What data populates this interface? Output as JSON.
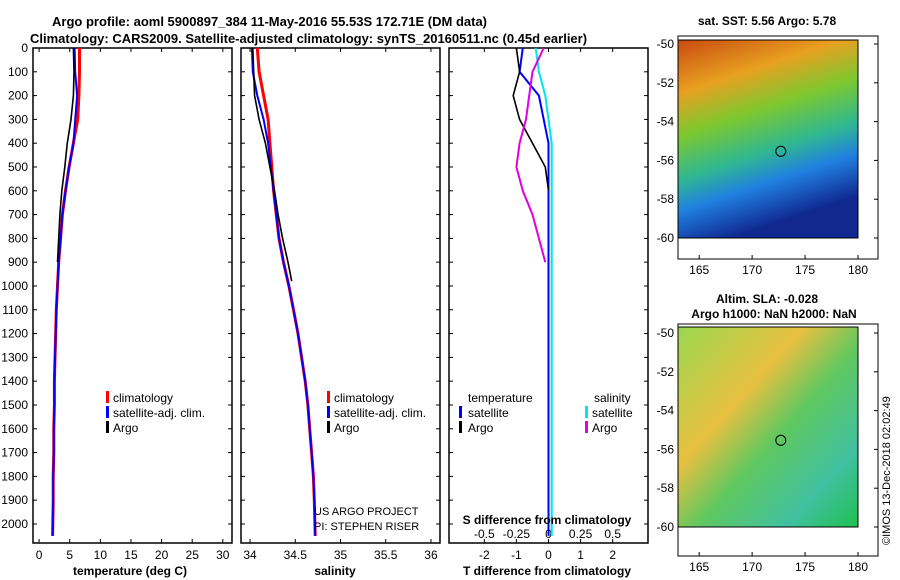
{
  "titles": {
    "line1": "Argo profile: aoml 5900897_384 11-May-2016 55.53S 172.71E (DM data)",
    "line2": "Climatology: CARS2009. Satellite-adjusted climatology: synTS_20160511.nc (0.45d earlier)"
  },
  "colors": {
    "climatology": "#ff0000",
    "satellite": "#0000ff",
    "argo": "#000000",
    "sat_salinity": "#00e5ee",
    "argo_salinity_diff": "#e000e0"
  },
  "depth_ticks": [
    "0",
    "100",
    "200",
    "300",
    "400",
    "500",
    "600",
    "700",
    "800",
    "900",
    "1000",
    "1100",
    "1200",
    "1300",
    "1400",
    "1500",
    "1600",
    "1700",
    "1800",
    "1900",
    "2000"
  ],
  "legend": {
    "climatology": "climatology",
    "satellite_adj": "satellite-adj. clim.",
    "argo": "Argo",
    "diff_temperature": "temperature",
    "diff_salinity": "salinity",
    "diff_satellite": "satellite"
  },
  "credits": {
    "project": "US ARGO PROJECT",
    "pi": "PI: STEPHEN RISER"
  },
  "diff_panel": {
    "top_label": "S difference from climatology",
    "top_ticks": [
      "-0.5",
      "-0.25",
      "0",
      "0.25",
      "0.5"
    ],
    "xlabel": "T difference from climatology"
  },
  "maps": {
    "sst_title": "sat. SST: 5.56 Argo: 5.78",
    "sla_title1": "Altim. SLA: -0.028",
    "sla_title2": "Argo h1000: NaN h2000: NaN",
    "lat_ticks": [
      "-50",
      "-52",
      "-54",
      "-56",
      "-58",
      "-60"
    ],
    "lon_ticks": [
      "165",
      "170",
      "175",
      "180"
    ],
    "float_lon": 172.71,
    "float_lat": -55.53
  },
  "stamp": "©IMOS 13-Dec-2018 02:02:49",
  "chart_data": [
    {
      "type": "line",
      "title": "",
      "xlabel": "temperature (deg C)",
      "ylabel": "",
      "xlim": [
        -1,
        31.5
      ],
      "ylim": [
        2080,
        0
      ],
      "xticks": [
        "0",
        "5",
        "10",
        "15",
        "20",
        "25",
        "30"
      ],
      "series": [
        {
          "name": "climatology",
          "x": [
            6.6,
            6.6,
            6.5,
            6.3,
            5.6,
            4.9,
            4.3,
            3.8,
            3.5,
            3.2,
            3.0,
            2.8,
            2.7,
            2.6,
            2.5,
            2.5,
            2.4,
            2.4,
            2.3,
            2.3,
            2.2
          ],
          "y": [
            0,
            100,
            200,
            300,
            400,
            500,
            600,
            700,
            800,
            900,
            1000,
            1100,
            1200,
            1300,
            1400,
            1500,
            1600,
            1700,
            1800,
            1900,
            2050
          ]
        },
        {
          "name": "satellite-adj. clim.",
          "x": [
            5.8,
            5.9,
            6.2,
            5.6,
            4.9,
            4.3,
            3.8,
            3.5,
            3.2,
            3.0,
            2.8,
            2.7,
            2.6,
            2.5,
            2.5,
            2.4,
            2.4,
            2.3,
            2.3,
            2.2
          ],
          "y": [
            0,
            100,
            200,
            400,
            500,
            600,
            700,
            800,
            900,
            1000,
            1100,
            1200,
            1300,
            1400,
            1500,
            1600,
            1700,
            1800,
            1900,
            2050
          ]
        },
        {
          "name": "Argo",
          "x": [
            5.6,
            5.7,
            5.6,
            5.2,
            4.6,
            4.2,
            3.7,
            3.4,
            3.2,
            3.0
          ],
          "y": [
            0,
            100,
            200,
            300,
            400,
            500,
            600,
            700,
            800,
            900
          ]
        }
      ]
    },
    {
      "type": "line",
      "title": "",
      "xlabel": "salinity",
      "ylabel": "",
      "xlim": [
        33.9,
        36.1
      ],
      "ylim": [
        2080,
        0
      ],
      "xticks": [
        "34",
        "34.5",
        "35",
        "35.5",
        "36"
      ],
      "series": [
        {
          "name": "climatology",
          "x": [
            34.08,
            34.1,
            34.15,
            34.2,
            34.22,
            34.24,
            34.26,
            34.29,
            34.32,
            34.37,
            34.43,
            34.48,
            34.53,
            34.57,
            34.61,
            34.64,
            34.66,
            34.68,
            34.7,
            34.71,
            34.72
          ],
          "y": [
            0,
            100,
            200,
            300,
            400,
            500,
            600,
            700,
            800,
            900,
            1000,
            1100,
            1200,
            1300,
            1400,
            1500,
            1600,
            1700,
            1800,
            1900,
            2050
          ]
        },
        {
          "name": "satellite-adj. clim.",
          "x": [
            34.02,
            34.03,
            34.08,
            34.15,
            34.2,
            34.23,
            34.26,
            34.29,
            34.32,
            34.37,
            34.43,
            34.48,
            34.53,
            34.57,
            34.61,
            34.64,
            34.66,
            34.68,
            34.7,
            34.71,
            34.72
          ],
          "y": [
            0,
            100,
            200,
            300,
            400,
            500,
            600,
            700,
            800,
            900,
            1000,
            1100,
            1200,
            1300,
            1400,
            1500,
            1600,
            1700,
            1800,
            1900,
            2050
          ]
        },
        {
          "name": "Argo",
          "x": [
            34.03,
            34.04,
            34.05,
            34.1,
            34.17,
            34.22,
            34.27,
            34.31,
            34.36,
            34.42,
            34.46
          ],
          "y": [
            0,
            100,
            200,
            300,
            400,
            500,
            600,
            700,
            800,
            900,
            980
          ]
        }
      ]
    },
    {
      "type": "line",
      "title": "S difference from climatology",
      "xlabel": "T difference from climatology",
      "ylabel": "",
      "xlim": [
        -3.1,
        3.1
      ],
      "ylim": [
        2080,
        0
      ],
      "xticks": [
        "-2",
        "-1",
        "0",
        "1",
        "2"
      ],
      "top_ticks": [
        "-0.5",
        "-0.25",
        "0",
        "0.25",
        "0.5"
      ],
      "series": [
        {
          "name": "satellite",
          "x": [
            -0.8,
            -0.9,
            -0.3,
            0.0,
            0.0,
            0.0,
            0.0,
            0.0,
            0.0,
            0.0,
            0.0,
            0.0,
            0.0,
            0.0,
            0.0,
            0.0,
            0.0
          ],
          "y": [
            0,
            100,
            200,
            400,
            500,
            600,
            700,
            800,
            900,
            1000,
            1200,
            1400,
            1600,
            1800,
            1900,
            2000,
            2050
          ]
        },
        {
          "name": "Argo",
          "x": [
            -1.0,
            -0.9,
            -1.1,
            -0.9,
            -0.5,
            -0.1,
            0.0
          ],
          "y": [
            0,
            100,
            200,
            300,
            400,
            500,
            600
          ]
        },
        {
          "name": "satellite",
          "x": [
            -0.4,
            -0.3,
            -0.1,
            0.0,
            0.1,
            0.1,
            0.1,
            0.1,
            0.1,
            0.1,
            0.1,
            0.1,
            0.1,
            0.1,
            0.1,
            0.1
          ],
          "y": [
            0,
            100,
            200,
            300,
            400,
            500,
            600,
            800,
            1000,
            1200,
            1400,
            1600,
            1800,
            1900,
            2000,
            2050
          ]
        },
        {
          "name": "Argo",
          "x": [
            -0.15,
            -0.5,
            -0.6,
            -0.7,
            -0.9,
            -1.0,
            -0.8,
            -0.5,
            -0.3,
            -0.1
          ],
          "y": [
            0,
            100,
            200,
            300,
            400,
            500,
            600,
            700,
            800,
            900
          ]
        }
      ]
    }
  ]
}
